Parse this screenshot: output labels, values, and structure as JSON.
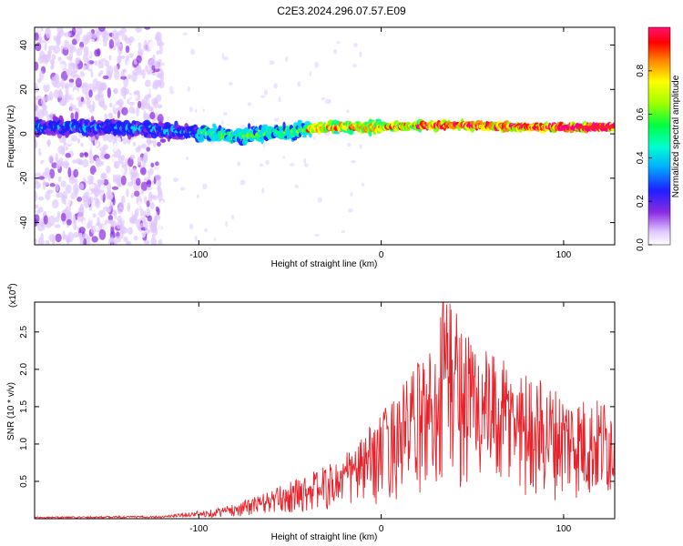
{
  "title": "C2E3.2024.296.07.57.E09",
  "chart_data": [
    {
      "type": "heatmap",
      "xlabel": "Height of straight line (km)",
      "ylabel": "Frequency (Hz)",
      "xlim": [
        -190,
        128
      ],
      "ylim": [
        -50,
        48
      ],
      "xticks": [
        "-100",
        "0",
        "100"
      ],
      "xtick_values": [
        -100,
        0,
        100
      ],
      "yticks": [
        "-40",
        "-20",
        "0",
        "20",
        "40"
      ],
      "ytick_values": [
        -40,
        -20,
        0,
        20,
        40
      ],
      "colorbar": {
        "label": "Normalized spectral amplitude",
        "range": [
          0,
          1
        ],
        "ticks": [
          "0.0",
          "0.2",
          "0.4",
          "0.6",
          "0.8"
        ],
        "tick_values": [
          0,
          0.2,
          0.4,
          0.6,
          0.8
        ],
        "colors": [
          "#ffffff",
          "#e0c8ff",
          "#8a2be2",
          "#1e1eff",
          "#00d8ff",
          "#00ff80",
          "#80ff00",
          "#ffff00",
          "#ff8000",
          "#ff0000",
          "#ff0080"
        ]
      },
      "ridge": {
        "description_free": true,
        "x": [
          -190,
          -150,
          -110,
          -80,
          -50,
          -30,
          0,
          40,
          80,
          128
        ],
        "freq": [
          3,
          3,
          1,
          -1,
          1,
          3,
          3,
          4,
          3,
          3
        ]
      },
      "grid": false
    },
    {
      "type": "line",
      "xlabel": "Height of straight line (km)",
      "ylabel": "SNR (10 * v/v)",
      "y_multiplier": "(x10",
      "y_multiplier_exp": "4",
      "xlim": [
        -190,
        128
      ],
      "ylim": [
        0,
        2.9
      ],
      "xticks": [
        "-100",
        "0",
        "100"
      ],
      "xtick_values": [
        -100,
        0,
        100
      ],
      "yticks": [
        "0.5",
        "1.0",
        "1.5",
        "2.0",
        "2.5"
      ],
      "ytick_values": [
        0.5,
        1.0,
        1.5,
        2.0,
        2.5
      ],
      "envelope": {
        "x": [
          -190,
          -120,
          -100,
          -80,
          -60,
          -40,
          -25,
          -10,
          0,
          10,
          20,
          30,
          35,
          45,
          60,
          80,
          100,
          115,
          128
        ],
        "y": [
          0.02,
          0.03,
          0.08,
          0.18,
          0.35,
          0.55,
          0.7,
          1.0,
          1.3,
          1.6,
          1.9,
          2.2,
          2.9,
          2.4,
          2.0,
          1.8,
          1.55,
          1.45,
          1.5
        ]
      },
      "color": "#e8222a",
      "grid": false
    }
  ]
}
